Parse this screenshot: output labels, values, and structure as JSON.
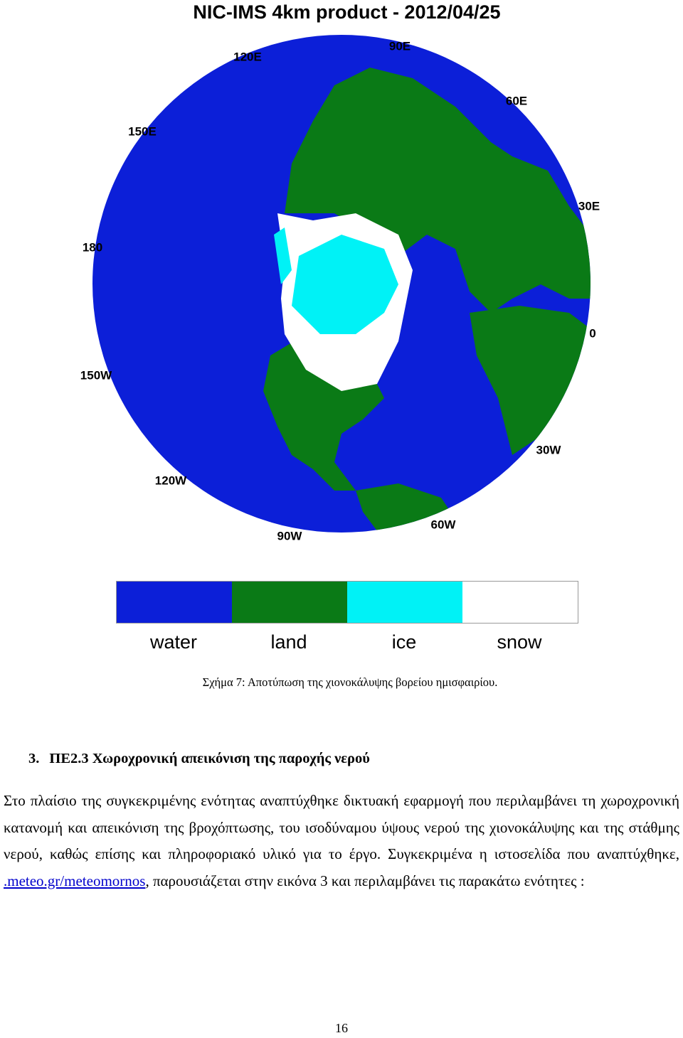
{
  "figure": {
    "title": "NIC-IMS 4km product  - 2012/04/25",
    "longitude_labels": [
      "90E",
      "60E",
      "30E",
      "0",
      "30W",
      "60W",
      "90W",
      "120W",
      "150W",
      "180",
      "150E",
      "120E"
    ],
    "legend": [
      {
        "label": "water",
        "color": "#0c1fd8"
      },
      {
        "label": "land",
        "color": "#0a7a16"
      },
      {
        "label": "ice",
        "color": "#00f2f6"
      },
      {
        "label": "snow",
        "color": "#ffffff"
      }
    ],
    "caption": "Σχήμα 7: Αποτύπωση της χιονοκάλυψης βορείου ημισφαιρίου."
  },
  "section": {
    "number": "3.",
    "heading": "ΠΕ2.3 Χωροχρονική απεικόνιση της παροχής νερού",
    "paragraph": {
      "before_link": "Στο πλαίσιο της συγκεκριμένης ενότητας αναπτύχθηκε δικτυακή εφαρμογή που περιλαμβάνει τη χωροχρονική κατανομή και απεικόνιση της βροχόπτωσης, του ισοδύναμου ύψους νερού της χιονοκάλυψης και της στάθμης νερού, καθώς επίσης και πληροφοριακό υλικό για το έργο. Συγκεκριμένα η ιστοσελίδα που αναπτύχθηκε, ",
      "link": ".meteo.gr/meteomornos",
      "after_link": ", παρουσιάζεται στην εικόνα 3 και περιλαμβάνει τις παρακάτω ενότητες :"
    }
  },
  "page_number": "16"
}
